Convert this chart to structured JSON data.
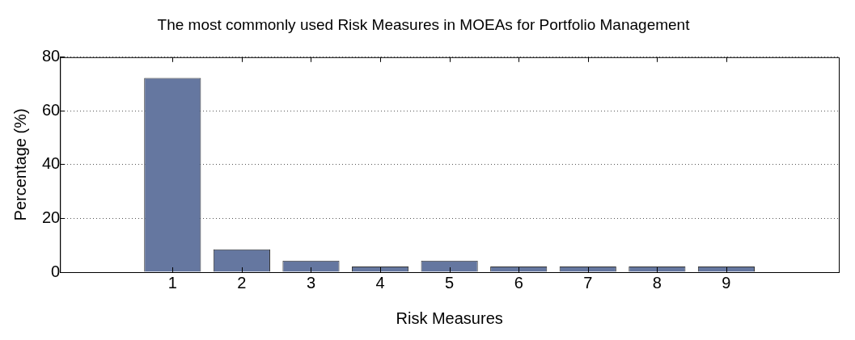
{
  "chart_data": {
    "type": "bar",
    "title": "The most commonly used Risk Measures in MOEAs for Portfolio Management",
    "xlabel": "Risk Measures",
    "ylabel": "Percentage (%)",
    "categories": [
      "1",
      "2",
      "3",
      "4",
      "5",
      "6",
      "7",
      "8",
      "9"
    ],
    "values": [
      72.3,
      8.5,
      4.3,
      2.1,
      4.3,
      2.1,
      2.1,
      2.1,
      2.1
    ],
    "color": "#6577a0",
    "ylim": [
      0,
      80
    ],
    "yticks": [
      0,
      20,
      40,
      60,
      80
    ],
    "grid": "y",
    "legend": false
  }
}
